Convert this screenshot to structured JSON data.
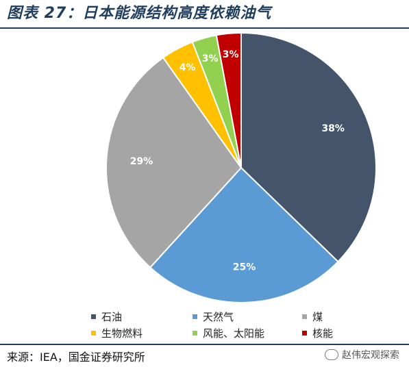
{
  "figure": {
    "title": "图表 27：日本能源结构高度依赖油气",
    "source": "来源：IEA，国金证券研究所",
    "watermark": "赵伟宏观探索"
  },
  "chart_data": {
    "type": "pie",
    "start_angle_deg": 0,
    "direction": "clockwise",
    "slices": [
      {
        "name": "石油",
        "value": 38,
        "label": "38%",
        "color": "#44546a"
      },
      {
        "name": "天然气",
        "value": 25,
        "label": "25%",
        "color": "#5b9bd5"
      },
      {
        "name": "煤",
        "value": 29,
        "label": "29%",
        "color": "#a5a5a5"
      },
      {
        "name": "生物燃料",
        "value": 4,
        "label": "4%",
        "color": "#ffc000"
      },
      {
        "name": "风能、太阳能",
        "value": 3,
        "label": "3%",
        "color": "#92d050"
      },
      {
        "name": "核能",
        "value": 3,
        "label": "3%",
        "color": "#c00000"
      }
    ],
    "legend": {
      "position": "bottom",
      "order": [
        "石油",
        "天然气",
        "煤",
        "生物燃料",
        "风能、太阳能",
        "核能"
      ]
    }
  }
}
